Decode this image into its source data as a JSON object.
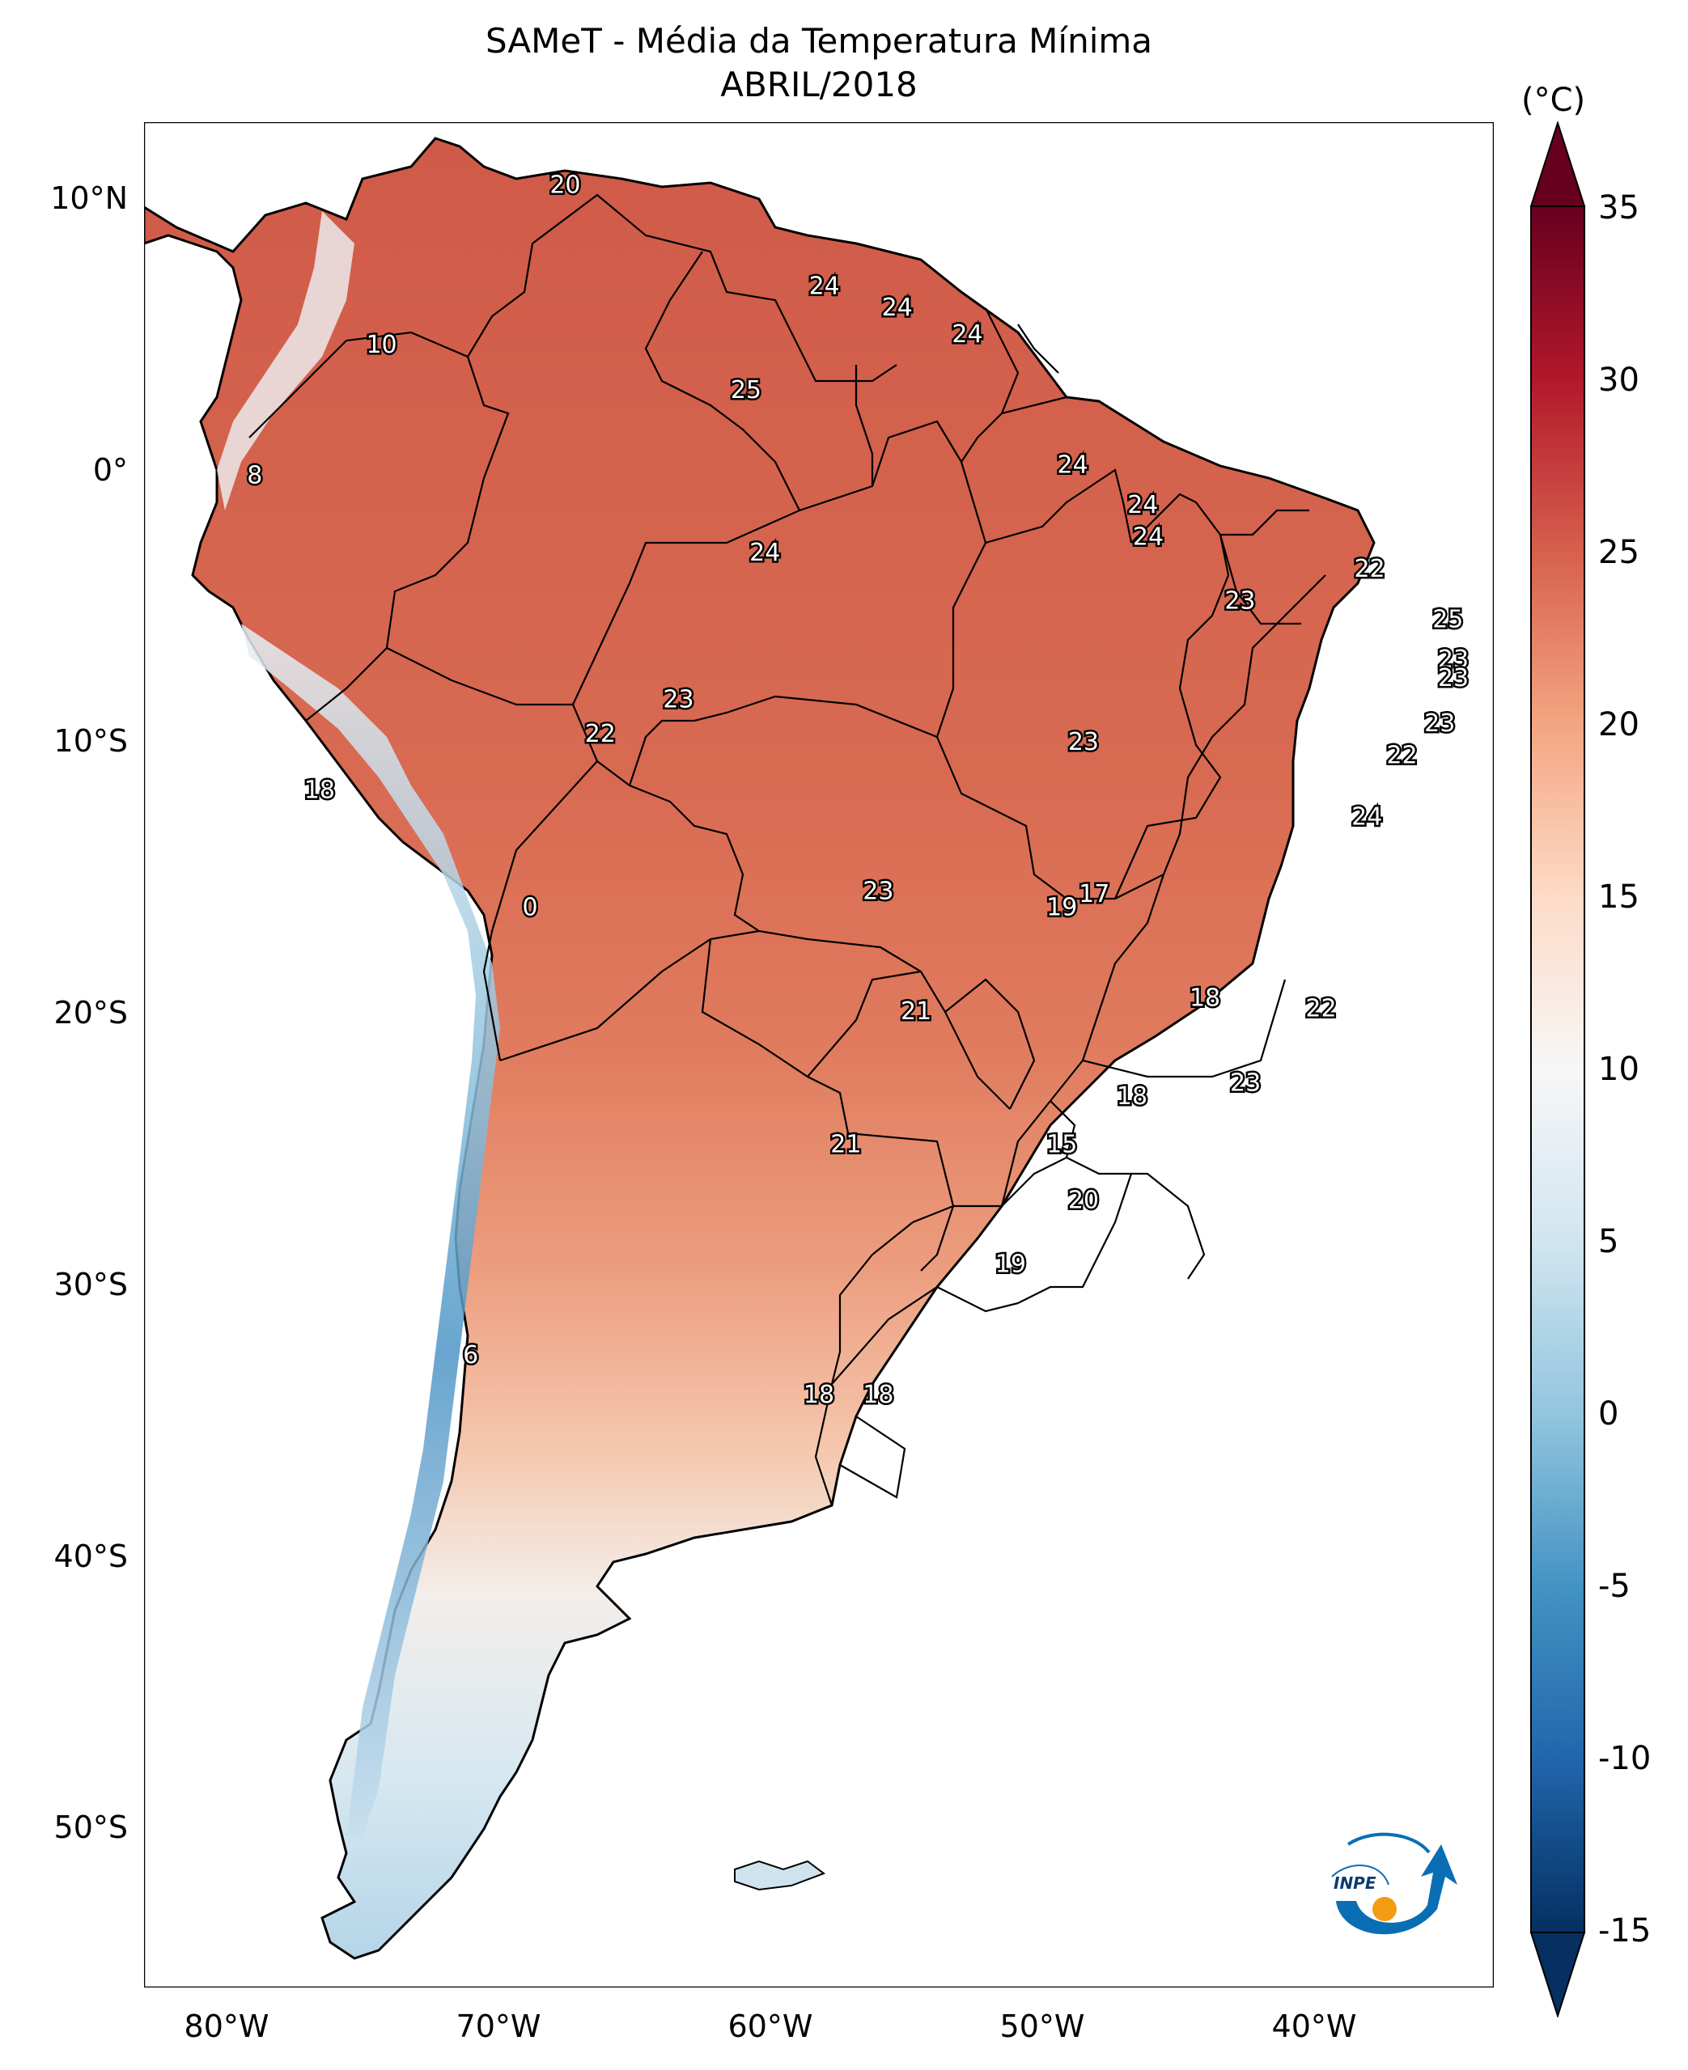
{
  "title": "SAMeT - Média da Temperatura Mínima",
  "subtitle": "ABRIL/2018",
  "colorbar": {
    "unit": "(°C)",
    "ticks": [
      "35",
      "30",
      "25",
      "20",
      "15",
      "10",
      "5",
      "0",
      "-5",
      "-10",
      "-15"
    ],
    "min": -15,
    "max": 35,
    "colormap": "RdBu_r",
    "extend": "both"
  },
  "axes": {
    "lat_ticks": [
      "10°N",
      "0°",
      "10°S",
      "20°S",
      "30°S",
      "40°S",
      "50°S"
    ],
    "lon_ticks": [
      "80°W",
      "70°W",
      "60°W",
      "50°W",
      "40°W"
    ]
  },
  "map": {
    "region": "South America",
    "projection": "PlateCarree",
    "lon_range": [
      -83,
      -33
    ],
    "lat_range": [
      -57,
      13
    ],
    "colors": {
      "warm_dark": "#b2182b",
      "warm": "#d6604d",
      "warm_light": "#f4a582",
      "neutral": "#f7f7f7",
      "cool_light": "#92c5de",
      "cool": "#4393c3",
      "cool_dark": "#2166ac",
      "border": "#000000"
    }
  },
  "labels": [
    {
      "text": "20",
      "lon": -67.4,
      "lat": 10.6
    },
    {
      "text": "10",
      "lon": -74.2,
      "lat": 4.6
    },
    {
      "text": "8",
      "lon": -78.9,
      "lat": -0.3
    },
    {
      "text": "24",
      "lon": -57.8,
      "lat": 6.8
    },
    {
      "text": "24",
      "lon": -55.1,
      "lat": 6.0
    },
    {
      "text": "24",
      "lon": -52.5,
      "lat": 5.0
    },
    {
      "text": "25",
      "lon": -60.7,
      "lat": 2.9
    },
    {
      "text": "24",
      "lon": -48.6,
      "lat": 0.1
    },
    {
      "text": "24",
      "lon": -46.0,
      "lat": -1.4
    },
    {
      "text": "24",
      "lon": -45.8,
      "lat": -2.6
    },
    {
      "text": "24",
      "lon": -60.0,
      "lat": -3.2
    },
    {
      "text": "22",
      "lon": -37.6,
      "lat": -3.8
    },
    {
      "text": "23",
      "lon": -42.4,
      "lat": -5.0
    },
    {
      "text": "25",
      "lon": -34.7,
      "lat": -5.7
    },
    {
      "text": "23",
      "lon": -34.5,
      "lat": -7.2
    },
    {
      "text": "23",
      "lon": -34.5,
      "lat": -7.9
    },
    {
      "text": "23",
      "lon": -63.2,
      "lat": -8.7
    },
    {
      "text": "23",
      "lon": -35.0,
      "lat": -9.6
    },
    {
      "text": "22",
      "lon": -66.1,
      "lat": -10.0
    },
    {
      "text": "23",
      "lon": -48.2,
      "lat": -10.3
    },
    {
      "text": "22",
      "lon": -36.4,
      "lat": -10.8
    },
    {
      "text": "18",
      "lon": -76.5,
      "lat": -12.1
    },
    {
      "text": "24",
      "lon": -37.7,
      "lat": -13.1
    },
    {
      "text": "23",
      "lon": -55.8,
      "lat": -15.9
    },
    {
      "text": "17",
      "lon": -47.8,
      "lat": -16.0
    },
    {
      "text": "19",
      "lon": -49.0,
      "lat": -16.5
    },
    {
      "text": "0",
      "lon": -68.7,
      "lat": -16.5
    },
    {
      "text": "18",
      "lon": -43.7,
      "lat": -19.9
    },
    {
      "text": "22",
      "lon": -39.4,
      "lat": -20.3
    },
    {
      "text": "21",
      "lon": -54.4,
      "lat": -20.4
    },
    {
      "text": "23",
      "lon": -42.2,
      "lat": -23.1
    },
    {
      "text": "18",
      "lon": -46.4,
      "lat": -23.6
    },
    {
      "text": "21",
      "lon": -57.0,
      "lat": -25.4
    },
    {
      "text": "15",
      "lon": -49.0,
      "lat": -25.4
    },
    {
      "text": "20",
      "lon": -48.2,
      "lat": -27.5
    },
    {
      "text": "19",
      "lon": -50.9,
      "lat": -29.9
    },
    {
      "text": "6",
      "lon": -70.9,
      "lat": -33.3
    },
    {
      "text": "18",
      "lon": -58.0,
      "lat": -34.8
    },
    {
      "text": "18",
      "lon": -55.8,
      "lat": -34.8
    }
  ]
}
